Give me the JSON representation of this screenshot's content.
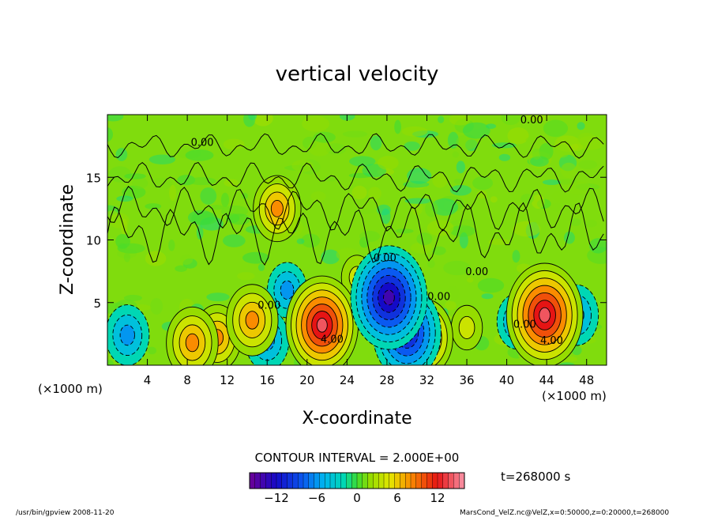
{
  "chart_data": {
    "type": "heatmap",
    "title": "vertical velocity",
    "xlabel": "X-coordinate",
    "ylabel": "Z-coordinate",
    "x_unit": "(×1000 m)",
    "z_unit": "(×1000 m)",
    "xlim": [
      0,
      50
    ],
    "ylim": [
      0,
      20
    ],
    "x_ticks": [
      "4",
      "8",
      "12",
      "16",
      "20",
      "24",
      "28",
      "32",
      "36",
      "40",
      "44",
      "48"
    ],
    "y_ticks": [
      "5",
      "10",
      "15"
    ],
    "contour_interval_text": "CONTOUR INTERVAL = 2.000E+00",
    "time_label": "t=268000 s",
    "colorbar": {
      "range": [
        -16,
        16
      ],
      "tick_labels": [
        "−12",
        "−6",
        "0",
        "6",
        "12"
      ]
    },
    "contour_labels": [
      "0.00",
      "0.00",
      "0.00",
      "0.00",
      "0.00",
      "0.00",
      "0.00",
      "4.00",
      "4.00"
    ],
    "features": [
      {
        "x": 21.5,
        "z": 3.2,
        "value": 13
      },
      {
        "x": 43.8,
        "z": 4.0,
        "value": 14
      },
      {
        "x": 28.2,
        "z": 5.4,
        "value": -14
      },
      {
        "x": 30.0,
        "z": 2.6,
        "value": -12
      },
      {
        "x": 2.0,
        "z": 2.4,
        "value": -6
      },
      {
        "x": 8.5,
        "z": 1.8,
        "value": 8
      },
      {
        "x": 11.0,
        "z": 2.2,
        "value": 7
      },
      {
        "x": 14.5,
        "z": 3.6,
        "value": 8
      },
      {
        "x": 16.0,
        "z": 2.0,
        "value": -6
      },
      {
        "x": 18.0,
        "z": 6.0,
        "value": -5
      },
      {
        "x": 31.8,
        "z": 2.2,
        "value": 9
      },
      {
        "x": 41.0,
        "z": 3.5,
        "value": -5
      },
      {
        "x": 47.0,
        "z": 4.0,
        "value": -6
      },
      {
        "x": 17.0,
        "z": 12.5,
        "value": 7
      },
      {
        "x": 25.0,
        "z": 7.0,
        "value": 3
      },
      {
        "x": 36.0,
        "z": 3.0,
        "value": 3
      }
    ],
    "background_value": 1.5
  },
  "footer": {
    "left": "/usr/bin/gpview   2008-11-20",
    "right": "MarsCond_VelZ.nc@VelZ,x=0:50000,z=0:20000,t=268000"
  }
}
